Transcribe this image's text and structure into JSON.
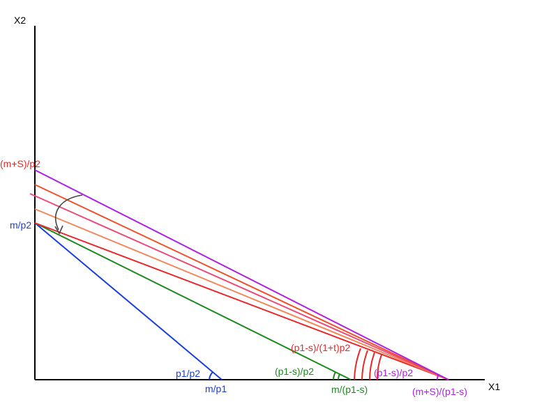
{
  "axes": {
    "x_label": "X1",
    "y_label": "X2"
  },
  "labels": {
    "m_p2": "m/p2",
    "m_s_p2": "(m+S)/p2",
    "m_p1": "m/p1",
    "m_p1_s": "m/(p1-s)",
    "m_s_p1_s": "(m+S)/(p1-s)",
    "slope_p1_p2": "p1/p2",
    "slope_p1s_p2_green": "(p1-s)/p2",
    "slope_p1s_1t_p2": "(p1-s)/(1+t)p2",
    "slope_p1s_p2_purple": "(p1-s)/p2"
  },
  "colors": {
    "axis": "#000000",
    "blue": "#1a3fd9",
    "green": "#1e8a1e",
    "red": "#e8282a",
    "purple": "#b020e0",
    "orange_red": "#f0502a",
    "pink": "#ec4a78",
    "salmon": "#f2885a",
    "arrow": "#444444"
  }
}
